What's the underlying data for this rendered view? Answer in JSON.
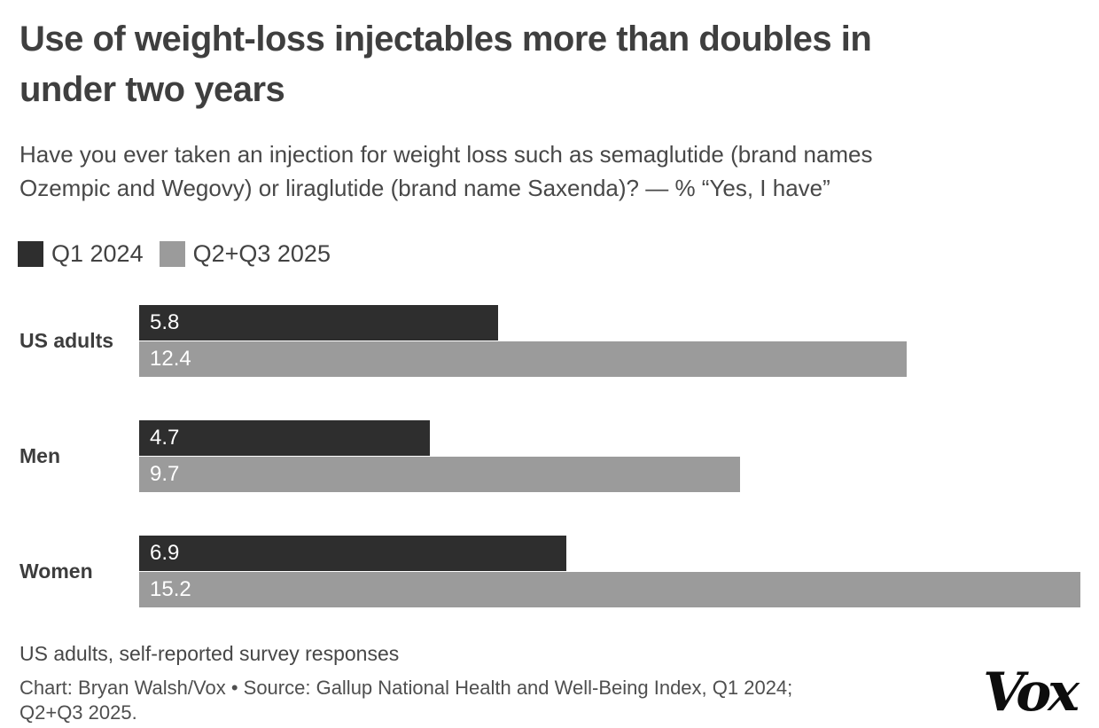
{
  "header": {
    "title_lines": [
      "Use of weight-loss injectables more than doubles in",
      "under two years"
    ],
    "subtitle_lines": [
      "Have you ever taken an injection for weight loss such as semaglutide (brand names",
      "Ozempic and Wegovy) or liraglutide (brand name Saxenda)? — % “Yes, I have”"
    ]
  },
  "legend": {
    "items": [
      {
        "label": "Q1 2024",
        "color": "#2e2e2e"
      },
      {
        "label": "Q2+Q3 2025",
        "color": "#9b9b9b"
      }
    ]
  },
  "chart_data": {
    "type": "bar",
    "orientation": "horizontal",
    "title": "Use of weight-loss injectables more than doubles in under two years",
    "subtitle": "Have you ever taken an injection for weight loss such as semaglutide (brand names Ozempic and Wegovy) or liraglutide (brand name Saxenda)? — % “Yes, I have”",
    "categories": [
      "US adults",
      "Men",
      "Women"
    ],
    "series": [
      {
        "name": "Q1 2024",
        "color": "#2e2e2e",
        "values": [
          5.8,
          4.7,
          6.9
        ]
      },
      {
        "name": "Q2+Q3 2025",
        "color": "#9b9b9b",
        "values": [
          12.4,
          9.7,
          15.2
        ]
      }
    ],
    "value_unit": "%",
    "xlim": [
      0,
      15.5
    ],
    "grid": false,
    "legend_position": "top-left",
    "value_label_style": "white, inside bar start"
  },
  "footer": {
    "note": "US adults, self-reported survey responses",
    "credit_lines": [
      "Chart: Bryan Walsh/Vox • Source: Gallup National Health and Well-Being Index, Q1 2024;",
      "Q2+Q3 2025."
    ],
    "logo_text": "Vox"
  },
  "colors": {
    "background": "#ffffff",
    "title_text": "#3f3f3f",
    "body_text": "#484848",
    "bar_dark": "#2e2e2e",
    "bar_gray": "#9b9b9b",
    "bar_value_text": "#ffffff",
    "logo": "#0d0d0d"
  }
}
